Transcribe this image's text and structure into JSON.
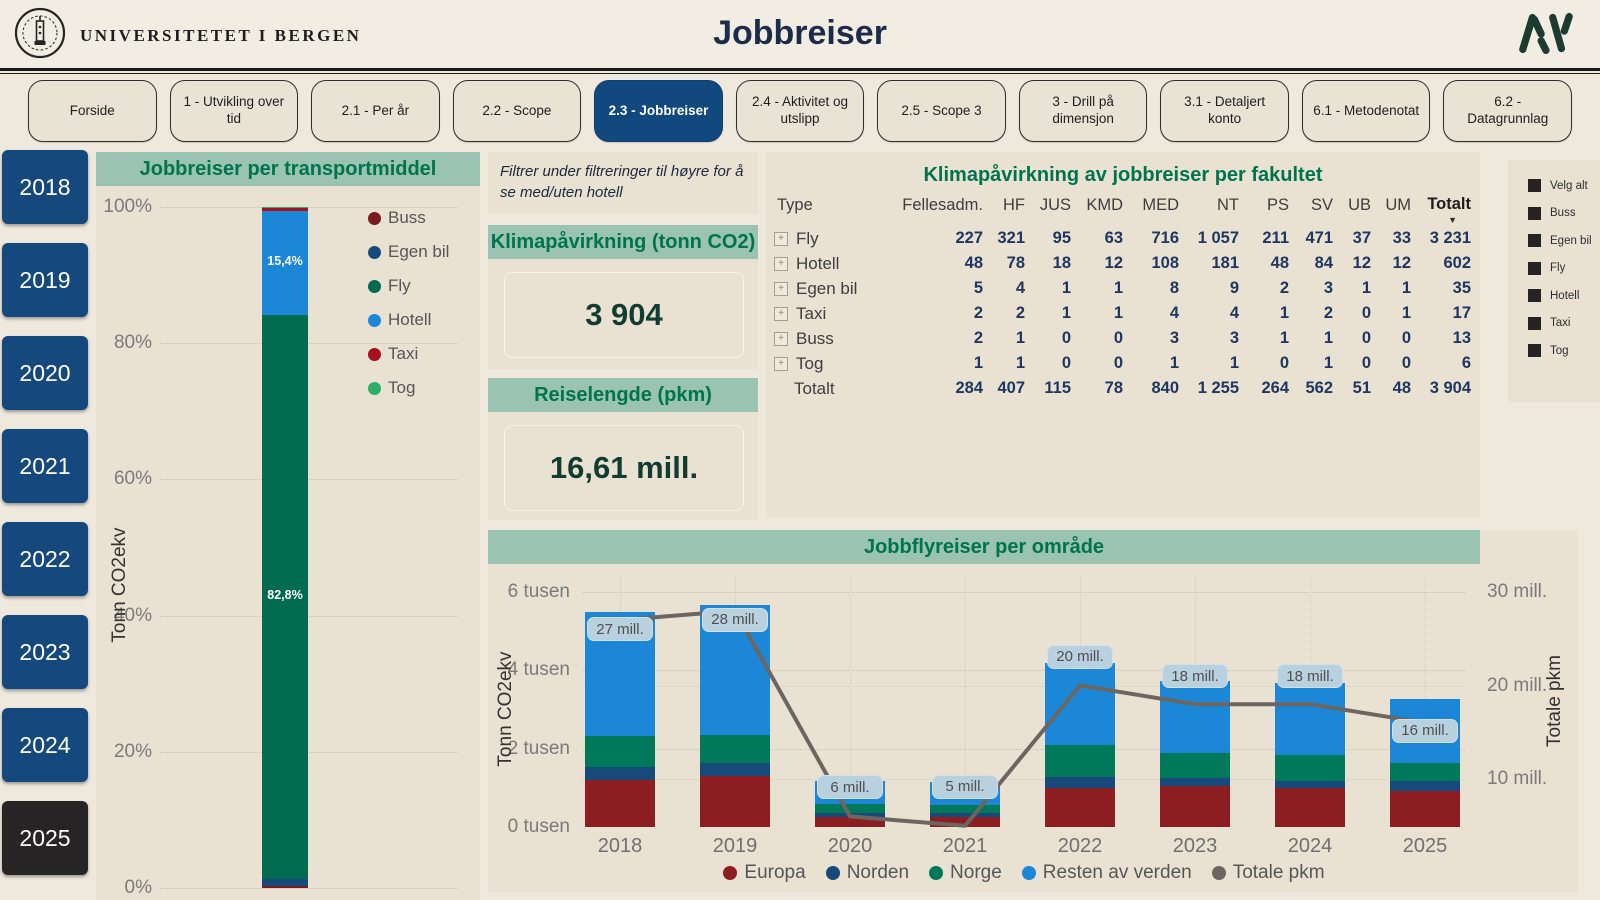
{
  "header": {
    "university": "UNIVERSITETET I BERGEN",
    "title": "Jobbreiser",
    "logo_left": "uib-seal",
    "logo_right": "av-monogram"
  },
  "tabs": {
    "active": "2.3 - Jobbreiser",
    "items": [
      {
        "label": "Forside"
      },
      {
        "label": "1 - Utvikling over tid"
      },
      {
        "label": "2.1 - Per år"
      },
      {
        "label": "2.2 - Scope"
      },
      {
        "label": "2.3 - Jobbreiser"
      },
      {
        "label": "2.4 - Aktivitet og utslipp"
      },
      {
        "label": "2.5 - Scope 3"
      },
      {
        "label": "3 - Drill på dimensjon"
      },
      {
        "label": "3.1 - Detaljert konto"
      },
      {
        "label": "6.1 - Metodenotat"
      },
      {
        "label": "6.2 - Datagrunnlag"
      }
    ]
  },
  "year_filter": {
    "selected": "2025",
    "items": [
      "2018",
      "2019",
      "2020",
      "2021",
      "2022",
      "2023",
      "2024",
      "2025"
    ]
  },
  "note": "Filtrer under filtreringer til høyre for å se med/uten hotell",
  "kpis": [
    {
      "title": "Klimapåvirkning (tonn CO2)",
      "value": "3 904"
    },
    {
      "title": "Reiselengde (pkm)",
      "value": "16,61 mill."
    }
  ],
  "fakultet_table": {
    "title": "Klimapåvirkning av jobbreiser per fakultet",
    "columns": [
      "Type",
      "Fellesadm.",
      "HF",
      "JUS",
      "KMD",
      "MED",
      "NT",
      "PS",
      "SV",
      "UB",
      "UM",
      "Totalt"
    ],
    "sorted_by": "Totalt",
    "rows": [
      {
        "type": "Fly",
        "values": [
          "227",
          "321",
          "95",
          "63",
          "716",
          "1 057",
          "211",
          "471",
          "37",
          "33",
          "3 231"
        ]
      },
      {
        "type": "Hotell",
        "values": [
          "48",
          "78",
          "18",
          "12",
          "108",
          "181",
          "48",
          "84",
          "12",
          "12",
          "602"
        ]
      },
      {
        "type": "Egen bil",
        "values": [
          "5",
          "4",
          "1",
          "1",
          "8",
          "9",
          "2",
          "3",
          "1",
          "1",
          "35"
        ]
      },
      {
        "type": "Taxi",
        "values": [
          "2",
          "2",
          "1",
          "1",
          "4",
          "4",
          "1",
          "2",
          "0",
          "1",
          "17"
        ]
      },
      {
        "type": "Buss",
        "values": [
          "2",
          "1",
          "0",
          "0",
          "3",
          "3",
          "1",
          "1",
          "0",
          "0",
          "13"
        ]
      },
      {
        "type": "Tog",
        "values": [
          "1",
          "1",
          "0",
          "0",
          "1",
          "1",
          "0",
          "1",
          "0",
          "0",
          "6"
        ]
      }
    ],
    "total_row": {
      "type": "Totalt",
      "values": [
        "284",
        "407",
        "115",
        "78",
        "840",
        "1 255",
        "264",
        "562",
        "51",
        "48",
        "3 904"
      ]
    }
  },
  "filters": {
    "items": [
      "Velg alt",
      "Buss",
      "Egen bil",
      "Fly",
      "Hotell",
      "Taxi",
      "Tog"
    ]
  },
  "icons": {
    "sort_desc": "▼",
    "expand": "+",
    "checkbox": "filled-square"
  },
  "colors": {
    "background": "#efe9dd",
    "panel": "#e9e2d3",
    "banner": "#9ac4b1",
    "banner_text": "#00734f",
    "active_blue": "#11497e",
    "year_blue": "#15497d",
    "year_selected_black": "#272425",
    "kpi_text": "#123c31",
    "table_number": "#1f3660",
    "line_gray": "#6d6660",
    "pill_blue": "#b9d0de"
  },
  "chart_data": [
    {
      "type": "bar",
      "subtype": "stacked-percent-single-column",
      "title": "Jobbreiser per transportmiddel",
      "ylabel": "Tonn CO2ekv",
      "yticks": [
        "0%",
        "20%",
        "40%",
        "60%",
        "80%",
        "100%"
      ],
      "ylim": [
        0,
        100
      ],
      "categories": [
        "2025"
      ],
      "series": [
        {
          "name": "Buss",
          "color": "#7b1a1c",
          "values": [
            0.33
          ]
        },
        {
          "name": "Egen bil",
          "color": "#17497b",
          "values": [
            0.95
          ]
        },
        {
          "name": "Fly",
          "color": "#006b4e",
          "values": [
            82.8
          ]
        },
        {
          "name": "Hotell",
          "color": "#1b87d6",
          "values": [
            15.4
          ]
        },
        {
          "name": "Taxi",
          "color": "#a8101f",
          "values": [
            0.44
          ]
        },
        {
          "name": "Tog",
          "color": "#2fae68",
          "values": [
            0.08
          ]
        }
      ],
      "labels": [
        {
          "series": "Hotell",
          "text": "15,4%"
        },
        {
          "series": "Fly",
          "text": "82,8%"
        }
      ],
      "legend": [
        "Buss",
        "Egen bil",
        "Fly",
        "Hotell",
        "Taxi",
        "Tog"
      ],
      "legend_position": "right"
    },
    {
      "type": "bar+line",
      "subtype": "stacked-columns-with-line",
      "title": "Jobbflyreiser per område",
      "ylabel_left": "Tonn CO2ekv",
      "ylabel_right": "Totale pkm",
      "yticks_left": [
        "0 tusen",
        "2 tusen",
        "4 tusen",
        "6 tusen"
      ],
      "ylim_left": [
        0,
        6.5
      ],
      "yticks_right": [
        "10 mill.",
        "20 mill.",
        "30 mill."
      ],
      "ylim_right": [
        0,
        32
      ],
      "categories": [
        "2018",
        "2019",
        "2020",
        "2021",
        "2022",
        "2023",
        "2024",
        "2025"
      ],
      "series": [
        {
          "name": "Europa",
          "color": "#8c1d21",
          "values": [
            1.2,
            1.3,
            0.25,
            0.25,
            1.0,
            1.05,
            1.0,
            0.92
          ]
        },
        {
          "name": "Norden",
          "color": "#17497b",
          "values": [
            0.33,
            0.33,
            0.1,
            0.1,
            0.28,
            0.21,
            0.18,
            0.25
          ]
        },
        {
          "name": "Norge",
          "color": "#00795b",
          "values": [
            0.8,
            0.71,
            0.23,
            0.22,
            0.81,
            0.63,
            0.65,
            0.46
          ]
        },
        {
          "name": "Resten av verden",
          "color": "#1b87d6",
          "values": [
            3.15,
            3.34,
            0.59,
            0.58,
            2.09,
            1.85,
            1.84,
            1.63
          ]
        }
      ],
      "line": {
        "name": "Totale pkm",
        "color": "#6d6660",
        "values": [
          27,
          28,
          6,
          5,
          20,
          18,
          18,
          16
        ],
        "labels": [
          "27 mill.",
          "28 mill.",
          "6 mill.",
          "5 mill.",
          "20 mill.",
          "18 mill.",
          "18 mill.",
          "16 mill."
        ]
      },
      "legend": [
        "Europa",
        "Norden",
        "Norge",
        "Resten av verden",
        "Totale pkm"
      ],
      "legend_position": "bottom",
      "grid": true
    }
  ]
}
